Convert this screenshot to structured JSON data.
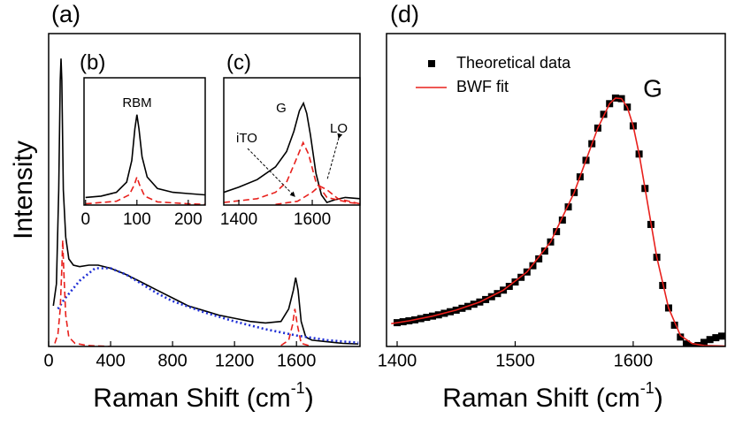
{
  "chart_data": [
    {
      "type": "line",
      "title": "(a)",
      "ylabel": "Intensity",
      "xlabel": [
        "Raman Shift (cm",
        "-1",
        ")"
      ],
      "xlim": [
        0,
        2010
      ],
      "ylim": [
        0,
        100
      ],
      "xticks": [
        0,
        400,
        800,
        1200,
        1600
      ],
      "series": [
        {
          "color": "#000000",
          "style": "solid",
          "x": [
            30,
            50,
            65,
            75,
            80,
            85,
            95,
            110,
            130,
            160,
            200,
            260,
            320,
            400,
            500,
            600,
            700,
            800,
            900,
            1000,
            1100,
            1200,
            1300,
            1400,
            1500,
            1550,
            1580,
            1595,
            1610,
            1630,
            1660,
            1700,
            1800,
            1900,
            2000
          ],
          "y": [
            13,
            20,
            50,
            85,
            92,
            85,
            50,
            35,
            28,
            26,
            25.5,
            26,
            26,
            25,
            23,
            20.5,
            18,
            15.5,
            13,
            11.5,
            10,
            9,
            8,
            7.5,
            8,
            12,
            18,
            22,
            18,
            8,
            3,
            2,
            1.5,
            1,
            0.8
          ]
        },
        {
          "color": "#1f2fd6",
          "style": "dotted",
          "x": [
            60,
            100,
            200,
            300,
            400,
            500,
            600,
            700,
            800,
            1000,
            1200,
            1400,
            1600,
            1800,
            2000
          ],
          "y": [
            12,
            15,
            21,
            25,
            25,
            23,
            20,
            17,
            14.5,
            11,
            8,
            5.5,
            3.5,
            2,
            1.2
          ]
        },
        {
          "color": "#e8201c",
          "style": "dashed",
          "x": [
            40,
            60,
            75,
            85,
            91,
            97,
            110,
            130,
            170,
            250,
            400
          ],
          "y": [
            1,
            4,
            12,
            25,
            34,
            25,
            10,
            3,
            1,
            0.3,
            0
          ]
        },
        {
          "color": "#e8201c",
          "style": "dashed",
          "x": [
            1500,
            1550,
            1575,
            1590,
            1605,
            1630,
            1700
          ],
          "y": [
            0.3,
            2,
            7,
            12,
            7,
            1,
            0
          ]
        }
      ]
    },
    {
      "type": "line",
      "title": "(b)",
      "annotations": [
        "RBM"
      ],
      "xlim": [
        -3,
        233
      ],
      "ylim": [
        0,
        100
      ],
      "xticks": [
        0,
        100,
        200
      ],
      "series": [
        {
          "color": "#000000",
          "style": "solid",
          "x": [
            0,
            30,
            60,
            80,
            90,
            96,
            100,
            104,
            110,
            120,
            140,
            170,
            200,
            233
          ],
          "y": [
            6,
            7,
            10,
            18,
            35,
            60,
            71,
            60,
            38,
            22,
            13,
            10,
            9,
            8
          ]
        },
        {
          "color": "#e8201c",
          "style": "dashed",
          "x": [
            0,
            60,
            85,
            95,
            100,
            105,
            115,
            140,
            200,
            233
          ],
          "y": [
            1,
            3,
            8,
            16,
            22,
            16,
            7,
            2.5,
            1,
            0.5
          ]
        }
      ]
    },
    {
      "type": "line",
      "title": "(c)",
      "annotations": [
        "G",
        "iTO",
        "LO"
      ],
      "xlim": [
        1359,
        1730
      ],
      "ylim": [
        0,
        100
      ],
      "xticks": [
        1400,
        1600
      ],
      "series": [
        {
          "color": "#000000",
          "style": "solid",
          "x": [
            1359,
            1400,
            1450,
            1500,
            1530,
            1550,
            1565,
            1576,
            1585,
            1595,
            1610,
            1625,
            1640,
            1660,
            1690,
            1730
          ],
          "y": [
            10,
            14,
            20,
            30,
            42,
            58,
            74,
            80,
            72,
            55,
            25,
            8,
            2,
            4,
            6,
            5
          ]
        },
        {
          "color": "#e8201c",
          "style": "dashed",
          "x": [
            1359,
            1450,
            1500,
            1530,
            1555,
            1575,
            1590,
            1610,
            1640,
            1700,
            1730
          ],
          "y": [
            2,
            5,
            10,
            18,
            35,
            49,
            40,
            18,
            6,
            2,
            1
          ]
        },
        {
          "color": "#e8201c",
          "style": "dashed",
          "x": [
            1500,
            1560,
            1600,
            1620,
            1640,
            1670,
            1730
          ],
          "y": [
            0.5,
            3,
            10,
            15,
            12,
            5,
            1
          ]
        }
      ]
    },
    {
      "type": "scatter",
      "title": "(d)",
      "annotations": [
        "G"
      ],
      "xlabel": [
        "Raman Shift (cm",
        "-1",
        ")"
      ],
      "xlim": [
        1391,
        1678
      ],
      "ylim": [
        0,
        100
      ],
      "xticks": [
        1400,
        1500,
        1600
      ],
      "series": [
        {
          "name": "Theoretical data",
          "color": "#000000",
          "style": "markers",
          "x": [
            1400,
            1405,
            1410,
            1415,
            1420,
            1425,
            1430,
            1435,
            1440,
            1445,
            1450,
            1455,
            1460,
            1465,
            1470,
            1475,
            1480,
            1485,
            1490,
            1495,
            1500,
            1505,
            1510,
            1515,
            1520,
            1525,
            1530,
            1535,
            1540,
            1545,
            1550,
            1555,
            1560,
            1565,
            1570,
            1575,
            1580,
            1585,
            1590,
            1595,
            1600,
            1605,
            1610,
            1615,
            1620,
            1625,
            1630,
            1635,
            1640,
            1645,
            1650,
            1655,
            1660,
            1665,
            1670,
            1675
          ],
          "y": [
            7.6,
            7.9,
            8.2,
            8.5,
            8.9,
            9.3,
            9.7,
            10.1,
            10.6,
            11.1,
            11.6,
            12.2,
            12.8,
            13.5,
            14.2,
            15,
            15.9,
            16.9,
            18,
            19.2,
            20.6,
            22.1,
            23.8,
            25.8,
            28,
            30.5,
            33.4,
            36.7,
            40.4,
            44.6,
            49.2,
            54.2,
            59.5,
            64.8,
            69.8,
            74.2,
            77.6,
            79.4,
            79.2,
            76.5,
            70.5,
            61.5,
            50.5,
            39,
            28.5,
            19.5,
            12.3,
            6.8,
            3,
            0.8,
            0,
            0.3,
            1.3,
            2.2,
            2.8,
            3.3
          ]
        },
        {
          "name": "BWF fit",
          "color": "#e8201c",
          "style": "solid",
          "x": [
            1395,
            1410,
            1430,
            1450,
            1470,
            1490,
            1510,
            1530,
            1550,
            1560,
            1570,
            1580,
            1585,
            1590,
            1595,
            1600,
            1605,
            1610,
            1620,
            1630,
            1640,
            1650,
            1660,
            1678
          ],
          "y": [
            7.3,
            8.2,
            9.7,
            11.6,
            14.2,
            18,
            23.8,
            33.4,
            49.2,
            59.5,
            69.8,
            77.6,
            79.4,
            79.2,
            76.5,
            70.5,
            61.5,
            50.5,
            28.5,
            12.3,
            3.5,
            0.9,
            0.3,
            0.1
          ]
        }
      ]
    }
  ]
}
